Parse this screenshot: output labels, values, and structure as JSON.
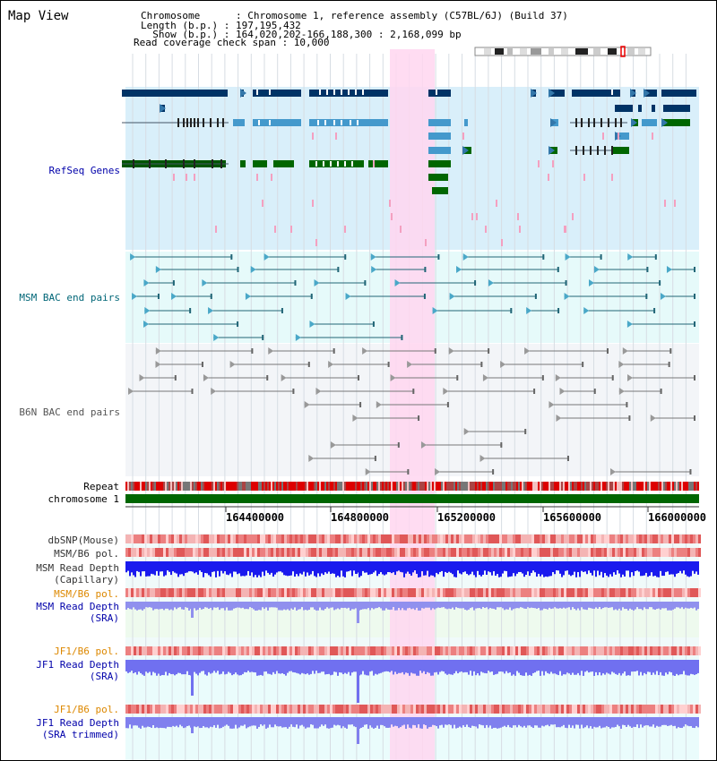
{
  "page": {
    "title": "Map View"
  },
  "info": {
    "chromosome": "Chromosome      : Chromosome 1, reference assembly (C57BL/6J) (Build 37)",
    "length": "Length (b.p.) : 197,195,432",
    "show": "  Show (b.p.) : 164,020,202-166,188,300 : 2,168,099 bp",
    "coverage": "Read coverage check span : 10,000"
  },
  "tracks": {
    "refseq": "RefSeq Genes",
    "msm_bac": "MSM BAC end pairs",
    "b6n_bac": "B6N BAC end pairs",
    "repeat": "Repeat",
    "chromosome": "chromosome 1",
    "dbsnp": "dbSNP(Mouse)",
    "msm_b6_pol_1": "MSM/B6 pol.",
    "msm_depth_cap_1": "MSM Read Depth",
    "msm_depth_cap_2": "(Capillary)",
    "msm_b6_pol_2": "MSM/B6 pol.",
    "msm_depth_sra_1": "MSM Read Depth",
    "msm_depth_sra_2": "(SRA)",
    "jf1_b6_pol_1": "JF1/B6 pol.",
    "jf1_depth_sra_1": "JF1 Read Depth",
    "jf1_depth_sra_2": "(SRA)",
    "jf1_b6_pol_2": "JF1/B6 pol.",
    "jf1_depth_trim_1": "JF1 Read Depth",
    "jf1_depth_trim_2": "(SRA trimmed)"
  },
  "axis": {
    "ticks": [
      "164400000",
      "164800000",
      "165200000",
      "165600000",
      "166000000"
    ]
  },
  "colors": {
    "dark_blue": "#003366",
    "gene_blue": "#4499cc",
    "gene_green": "#006600",
    "highlight": "#ffd6f0",
    "refseq_bg": "#d9effa",
    "msm_bg": "#e6fafa",
    "b6n_bg": "#f3f5f8",
    "label_blue": "#0000aa",
    "label_teal": "#006677",
    "label_gray": "#555555",
    "label_orange": "#dd8800"
  }
}
